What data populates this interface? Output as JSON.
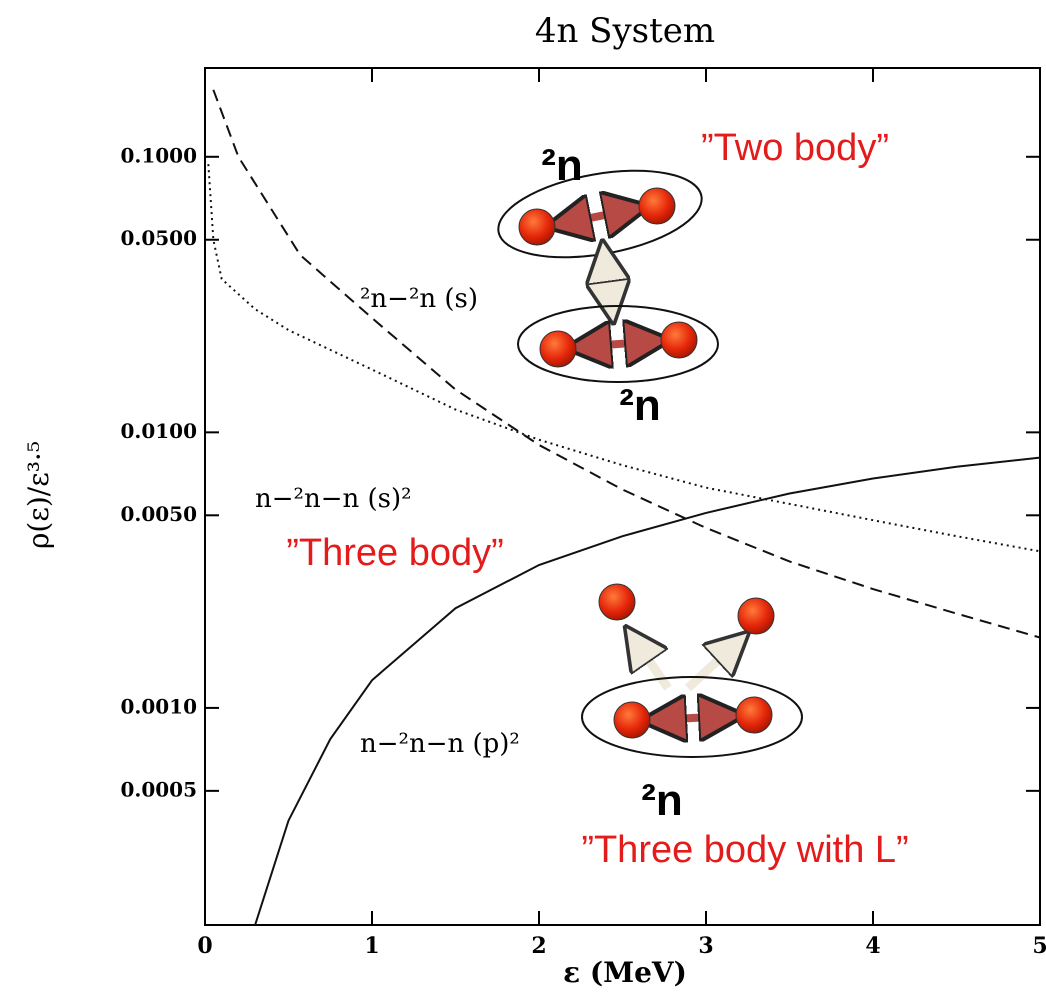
{
  "chart_data": {
    "type": "line",
    "title": "4n System",
    "x_label": "ε (MeV)",
    "y_label": "ρ(ε)/ε³·⁵",
    "xlim": [
      0,
      5
    ],
    "xticks": [
      0,
      1,
      2,
      3,
      4,
      5
    ],
    "ylim": [
      0.000163,
      0.21
    ],
    "log_y": true,
    "yticks": [
      {
        "value": 0.1,
        "label": "0.1000"
      },
      {
        "value": 0.05,
        "label": "0.0500"
      },
      {
        "value": 0.01,
        "label": "0.0100"
      },
      {
        "value": 0.005,
        "label": "0.0050"
      },
      {
        "value": 0.001,
        "label": "0.0010"
      },
      {
        "value": 0.0005,
        "label": "0.0005"
      }
    ],
    "series": [
      {
        "name": "²n−²n (s)",
        "color": "#111111",
        "dash": "dashed",
        "x": [
          0.05,
          0.2,
          0.57,
          1,
          1.5,
          2,
          2.5,
          3,
          3.5,
          4,
          4.5,
          5
        ],
        "values": [
          0.175,
          0.1,
          0.044,
          0.026,
          0.0143,
          0.009,
          0.0062,
          0.0045,
          0.0034,
          0.0027,
          0.0022,
          0.0018
        ]
      },
      {
        "name": "n−²n−n (s)²",
        "color": "#111111",
        "dash": "dotted",
        "x": [
          0.02,
          0.05,
          0.1,
          0.3,
          0.5,
          1,
          1.5,
          2,
          2.5,
          3,
          3.5,
          4,
          4.5,
          5
        ],
        "values": [
          0.094,
          0.05,
          0.036,
          0.028,
          0.0235,
          0.0169,
          0.0121,
          0.0094,
          0.0076,
          0.0063,
          0.0055,
          0.0048,
          0.0042,
          0.0037
        ]
      },
      {
        "name": "n−²n−n (p)²",
        "color": "#111111",
        "dash": "solid",
        "x": [
          0.3,
          0.5,
          0.75,
          1,
          1.5,
          2,
          2.5,
          3,
          3.5,
          4,
          4.5,
          5
        ],
        "values": [
          0.000163,
          0.00039,
          0.00077,
          0.00126,
          0.0023,
          0.0033,
          0.0042,
          0.0051,
          0.006,
          0.0068,
          0.0075,
          0.0081
        ]
      }
    ],
    "annotations": [
      "”Two body”",
      "”Three body”",
      "”Three body with L”",
      "²n",
      "²n",
      "²n"
    ]
  }
}
